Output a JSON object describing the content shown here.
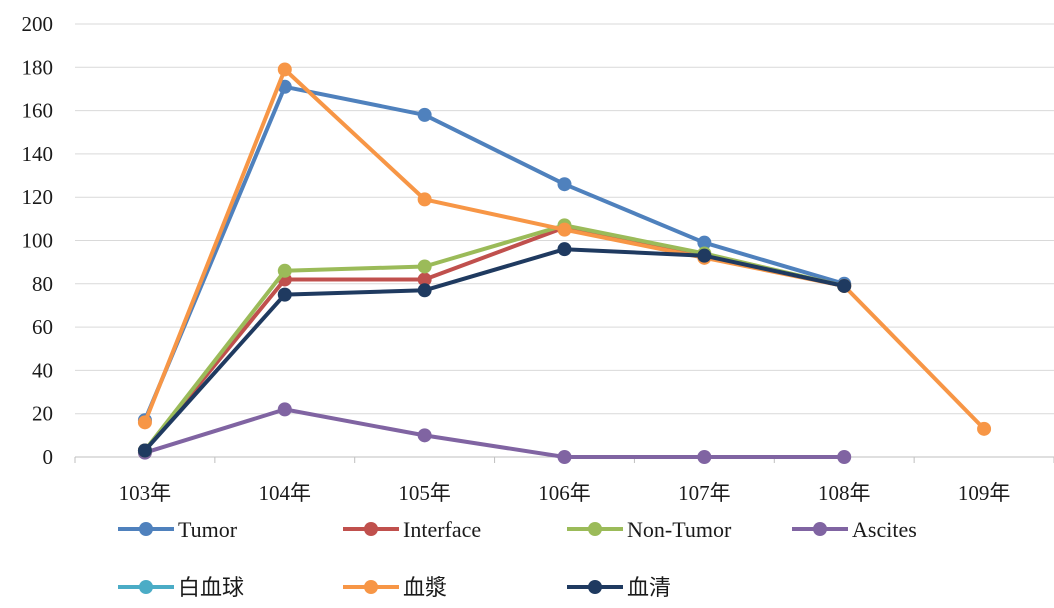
{
  "chart_data": {
    "type": "line",
    "title": "",
    "xlabel": "",
    "ylabel": "",
    "categories": [
      "103年",
      "104年",
      "105年",
      "106年",
      "107年",
      "108年",
      "109年"
    ],
    "ylim": [
      0,
      200
    ],
    "yticks": [
      0,
      20,
      40,
      60,
      80,
      100,
      120,
      140,
      160,
      180,
      200
    ],
    "grid": "horizontal",
    "legend": "bottom",
    "series": [
      {
        "name": "Tumor",
        "color": "#4f81bd",
        "values": [
          17,
          171,
          158,
          126,
          99,
          80,
          null
        ]
      },
      {
        "name": "Interface",
        "color": "#c0504d",
        "values": [
          3,
          82,
          82,
          106,
          93,
          79,
          null
        ]
      },
      {
        "name": "Non-Tumor",
        "color": "#9bbb59",
        "values": [
          3,
          86,
          88,
          107,
          94,
          79,
          null
        ]
      },
      {
        "name": "Ascites",
        "color": "#8064a2",
        "values": [
          2,
          22,
          10,
          0,
          0,
          0,
          null
        ]
      },
      {
        "name": "白血球",
        "color": "#4bacc6",
        "values": [
          null,
          null,
          null,
          null,
          null,
          null,
          null
        ]
      },
      {
        "name": "血漿",
        "color": "#f79646",
        "values": [
          16,
          179,
          119,
          105,
          92,
          79,
          13
        ]
      },
      {
        "name": "血清",
        "color": "#1f3a60",
        "values": [
          3,
          75,
          77,
          96,
          93,
          79,
          null
        ]
      }
    ],
    "draw_order": [
      0,
      3,
      1,
      2,
      5,
      6
    ]
  }
}
